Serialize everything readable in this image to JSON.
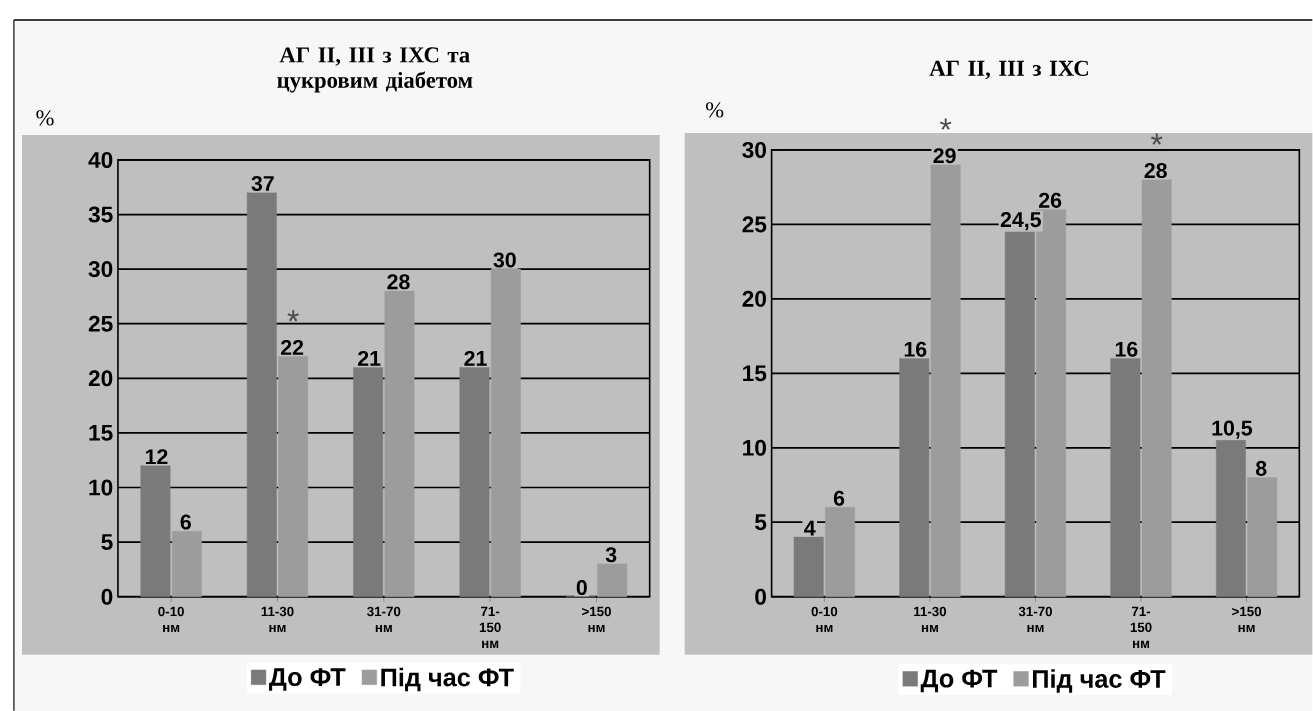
{
  "chart_data": [
    {
      "type": "bar",
      "title": "АГ II, III з ІХС та цукровим діабетом",
      "ylabel": "%",
      "categories": [
        "0-10 нм",
        "11-30 нм",
        "31-70 нм",
        "71-150 нм",
        ">150 нм"
      ],
      "series": [
        {
          "name": "До ФТ",
          "color": "#7a7a7a",
          "values": [
            12,
            37,
            21,
            21,
            0
          ],
          "value_labels": [
            "12",
            "37",
            "21",
            "21",
            "0"
          ]
        },
        {
          "name": "Під час ФТ",
          "color": "#9c9c9c",
          "values": [
            6,
            22,
            28,
            30,
            3
          ],
          "value_labels": [
            "6",
            "22",
            "28",
            "30",
            "3"
          ]
        }
      ],
      "annotations": [
        {
          "text": "*",
          "x": "11-30 нм",
          "y": 22
        }
      ],
      "ylim": [
        0,
        40
      ],
      "yticks": [
        0,
        5,
        10,
        15,
        20,
        25,
        30,
        35,
        40
      ],
      "grid": "y",
      "legend": "bottom"
    },
    {
      "type": "bar",
      "title": "АГ II, III з ІХС",
      "ylabel": "%",
      "categories": [
        "0-10 нм",
        "11-30 нм",
        "31-70 нм",
        "71-150 нм",
        ">150 нм"
      ],
      "series": [
        {
          "name": "До ФТ",
          "color": "#7a7a7a",
          "values": [
            4,
            16,
            24.5,
            16,
            10.5
          ],
          "value_labels": [
            "4",
            "16",
            "24,5",
            "16",
            "10,5"
          ]
        },
        {
          "name": "Під час ФТ",
          "color": "#9c9c9c",
          "values": [
            6,
            29,
            26,
            28,
            8
          ],
          "value_labels": [
            "6",
            "29",
            "26",
            "28",
            "8"
          ]
        }
      ],
      "annotations": [
        {
          "text": "*",
          "x": "11-30 нм",
          "y": 29
        },
        {
          "text": "*",
          "x": "71-150 нм",
          "y": 28
        }
      ],
      "ylim": [
        0,
        30
      ],
      "yticks": [
        0,
        5,
        10,
        15,
        20,
        25,
        30
      ],
      "grid": "y",
      "legend": "bottom"
    }
  ]
}
